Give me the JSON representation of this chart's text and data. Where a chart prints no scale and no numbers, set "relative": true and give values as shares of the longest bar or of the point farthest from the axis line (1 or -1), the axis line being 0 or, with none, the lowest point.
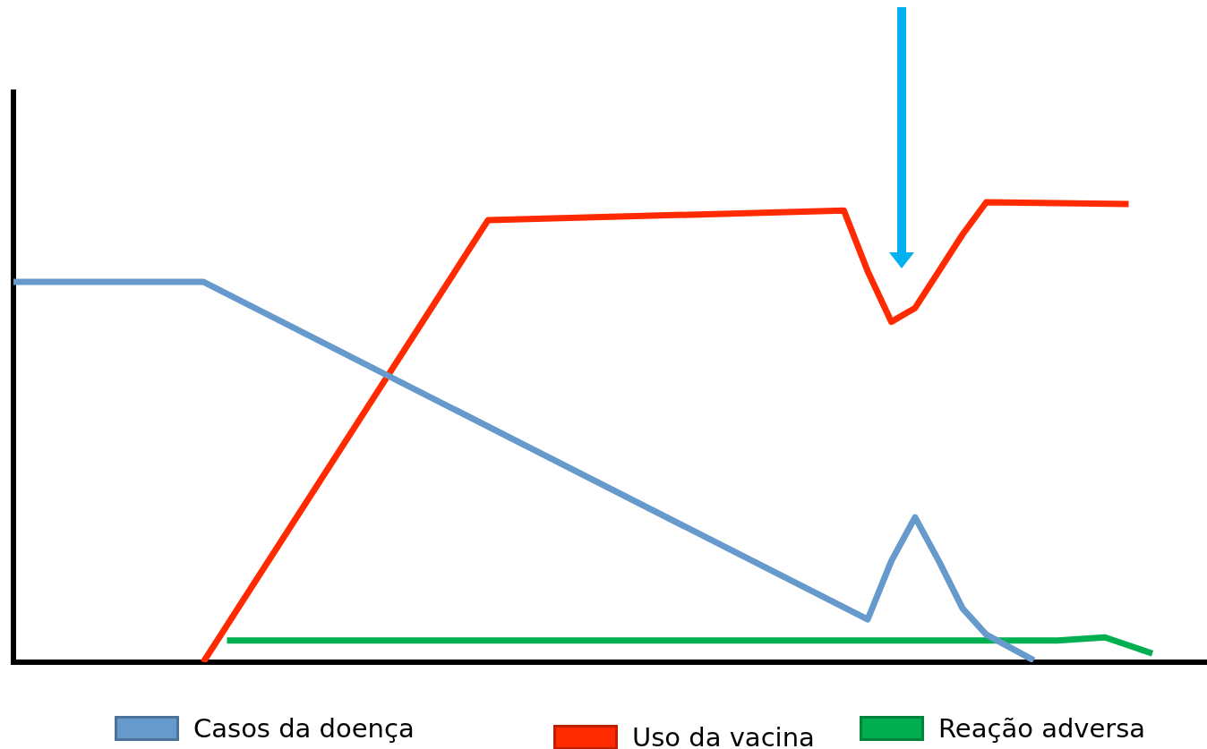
{
  "chart_data": {
    "type": "line",
    "relative": true,
    "legend": "bottom",
    "tick_labels": false,
    "marker": "none",
    "line_style": "solid",
    "categories": [
      null,
      null,
      null,
      null,
      null,
      null,
      null,
      null,
      null,
      null,
      null,
      null,
      null,
      null,
      null,
      null,
      null,
      null,
      null,
      null,
      null,
      null,
      null,
      null,
      null,
      null,
      null,
      null,
      null,
      null,
      null,
      null,
      null,
      null,
      null,
      null,
      null,
      null,
      null,
      null,
      null,
      null,
      null,
      null,
      null,
      null,
      null,
      null,
      null,
      null,
      null
    ],
    "series": [
      {
        "name": "Casos da doença",
        "color": "#6699cc",
        "values": [
          0.827,
          null,
          null,
          null,
          null,
          null,
          null,
          null,
          0.827,
          null,
          null,
          null,
          null,
          null,
          null,
          null,
          null,
          null,
          null,
          null,
          null,
          null,
          null,
          null,
          null,
          null,
          null,
          null,
          null,
          null,
          null,
          null,
          null,
          null,
          null,
          null,
          0.093,
          0.22,
          0.315,
          0.22,
          0.117,
          0.06,
          null,
          0.004,
          null,
          null,
          null,
          null,
          null,
          null,
          null
        ]
      },
      {
        "name": "Uso da vacina",
        "color": "#ff2a00",
        "values": [
          null,
          null,
          null,
          null,
          null,
          null,
          null,
          null,
          0,
          null,
          null,
          null,
          null,
          null,
          null,
          null,
          null,
          null,
          null,
          null,
          0.961,
          null,
          null,
          null,
          null,
          null,
          null,
          null,
          null,
          null,
          null,
          null,
          null,
          null,
          null,
          0.982,
          0.85,
          0.74,
          0.77,
          0.85,
          0.93,
          1,
          null,
          null,
          null,
          null,
          null,
          0.996,
          null,
          null,
          null
        ]
      },
      {
        "name": "Reação adversa",
        "color": "#00b050",
        "values": [
          null,
          null,
          null,
          null,
          null,
          null,
          null,
          null,
          null,
          0.047,
          null,
          null,
          null,
          null,
          null,
          null,
          null,
          null,
          null,
          null,
          null,
          null,
          null,
          null,
          null,
          null,
          null,
          null,
          null,
          null,
          null,
          null,
          null,
          null,
          null,
          null,
          null,
          null,
          null,
          null,
          null,
          null,
          null,
          null,
          0.047,
          null,
          0.054,
          null,
          0.019,
          null,
          null
        ]
      }
    ]
  }
}
